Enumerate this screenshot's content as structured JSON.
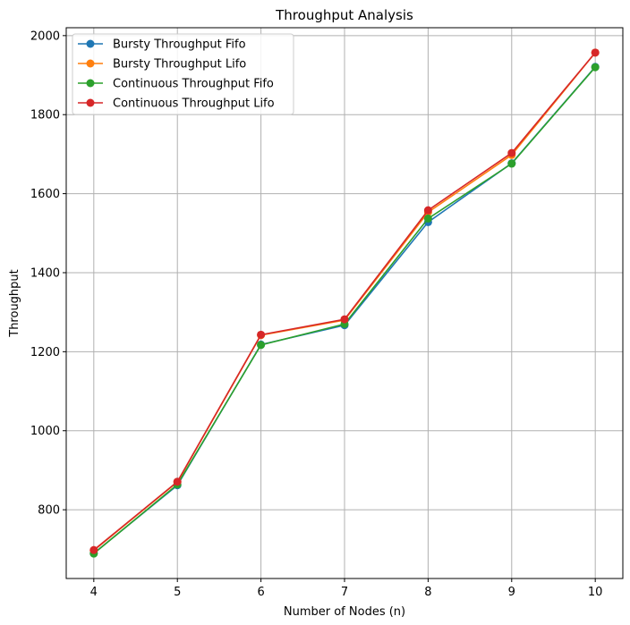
{
  "chart_data": {
    "type": "line",
    "title": "Throughput Analysis",
    "xlabel": "Number of Nodes (n)",
    "ylabel": "Throughput",
    "x": [
      4,
      5,
      6,
      7,
      8,
      9,
      10
    ],
    "xlim": [
      3.67,
      10.33
    ],
    "ylim": [
      626,
      2020
    ],
    "xticks": [
      4,
      5,
      6,
      7,
      8,
      9,
      10
    ],
    "yticks": [
      800,
      1000,
      1200,
      1400,
      1600,
      1800,
      2000
    ],
    "grid": true,
    "legend_position": "top-left",
    "marker": "circle",
    "series": [
      {
        "name": "Bursty Throughput Fifo",
        "color": "#1f77b4",
        "values": [
          690,
          862,
          1218,
          1267,
          1528,
          1677,
          1921
        ]
      },
      {
        "name": "Bursty Throughput Lifo",
        "color": "#ff7f0e",
        "values": [
          697,
          870,
          1242,
          1280,
          1553,
          1698,
          1957
        ]
      },
      {
        "name": "Continuous Throughput Fifo",
        "color": "#2ca02c",
        "values": [
          689,
          864,
          1217,
          1270,
          1537,
          1676,
          1920
        ]
      },
      {
        "name": "Continuous Throughput Lifo",
        "color": "#d62728",
        "values": [
          698,
          871,
          1243,
          1282,
          1558,
          1703,
          1957
        ]
      }
    ]
  }
}
